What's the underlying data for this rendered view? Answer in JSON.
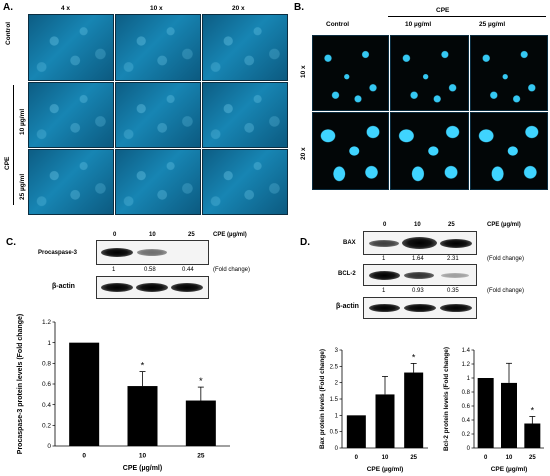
{
  "panelA": {
    "letter": "A.",
    "mags": [
      "4 x",
      "10 x",
      "20 x"
    ],
    "rows": [
      "Control",
      "10 µg/ml",
      "25 µg/ml"
    ],
    "cpe_label": "CPE"
  },
  "panelB": {
    "letter": "B.",
    "cpe_label": "CPE",
    "cols": [
      "Control",
      "10 µg/ml",
      "25 µg/ml"
    ],
    "rows": [
      "10 x",
      "20 x"
    ]
  },
  "panelC": {
    "letter": "C.",
    "lanes": [
      "0",
      "10",
      "25"
    ],
    "unit": "CPE (µg/ml)",
    "target": "Procaspase-3",
    "fold_values": [
      "1",
      "0.58",
      "0.44"
    ],
    "fold_label": "(Fold change)",
    "loading": "β-actin"
  },
  "panelD": {
    "letter": "D.",
    "lanes": [
      "0",
      "10",
      "25"
    ],
    "unit": "CPE (µg/ml)",
    "bax_label": "BAX",
    "bax_fold": [
      "1",
      "1.64",
      "2.31"
    ],
    "bcl_label": "BCL-2",
    "bcl_fold": [
      "1",
      "0.93",
      "0.35"
    ],
    "fold_label": "(Fold change)",
    "loading": "β-actin"
  },
  "chart_data": [
    {
      "type": "bar",
      "categories": [
        "0",
        "10",
        "25"
      ],
      "values": [
        1.0,
        0.58,
        0.44
      ],
      "errors": [
        0,
        0.14,
        0.13
      ],
      "significance": [
        "",
        "*",
        "*"
      ],
      "xlabel": "CPE  (µg/ml)",
      "ylabel": "Procaspase-3 protein levels (Fold change)",
      "ylim": [
        0,
        1.2
      ],
      "yticks": [
        "0",
        "0.2",
        "0.4",
        "0.6",
        "0.8",
        "1",
        "1.2"
      ]
    },
    {
      "type": "bar",
      "categories": [
        "0",
        "10",
        "25"
      ],
      "values": [
        1.0,
        1.64,
        2.31
      ],
      "errors": [
        0,
        0.55,
        0.28
      ],
      "significance": [
        "",
        "",
        "*"
      ],
      "xlabel": "CPE (µg/ml)",
      "ylabel": "Bax protein levels (Fold change)",
      "ylim": [
        0,
        3
      ],
      "yticks": [
        "0",
        "0.5",
        "1",
        "1.5",
        "2",
        "2.5",
        "3"
      ]
    },
    {
      "type": "bar",
      "categories": [
        "0",
        "10",
        "25"
      ],
      "values": [
        1.0,
        0.93,
        0.35
      ],
      "errors": [
        0,
        0.28,
        0.1
      ],
      "significance": [
        "",
        "",
        "*"
      ],
      "xlabel": "CPE (µg/ml)",
      "ylabel": "Bcl-2 protein levels (Fold change)",
      "ylim": [
        0,
        1.4
      ],
      "yticks": [
        "0",
        "0.2",
        "0.4",
        "0.6",
        "0.8",
        "1",
        "1.2",
        "1.4"
      ]
    }
  ]
}
